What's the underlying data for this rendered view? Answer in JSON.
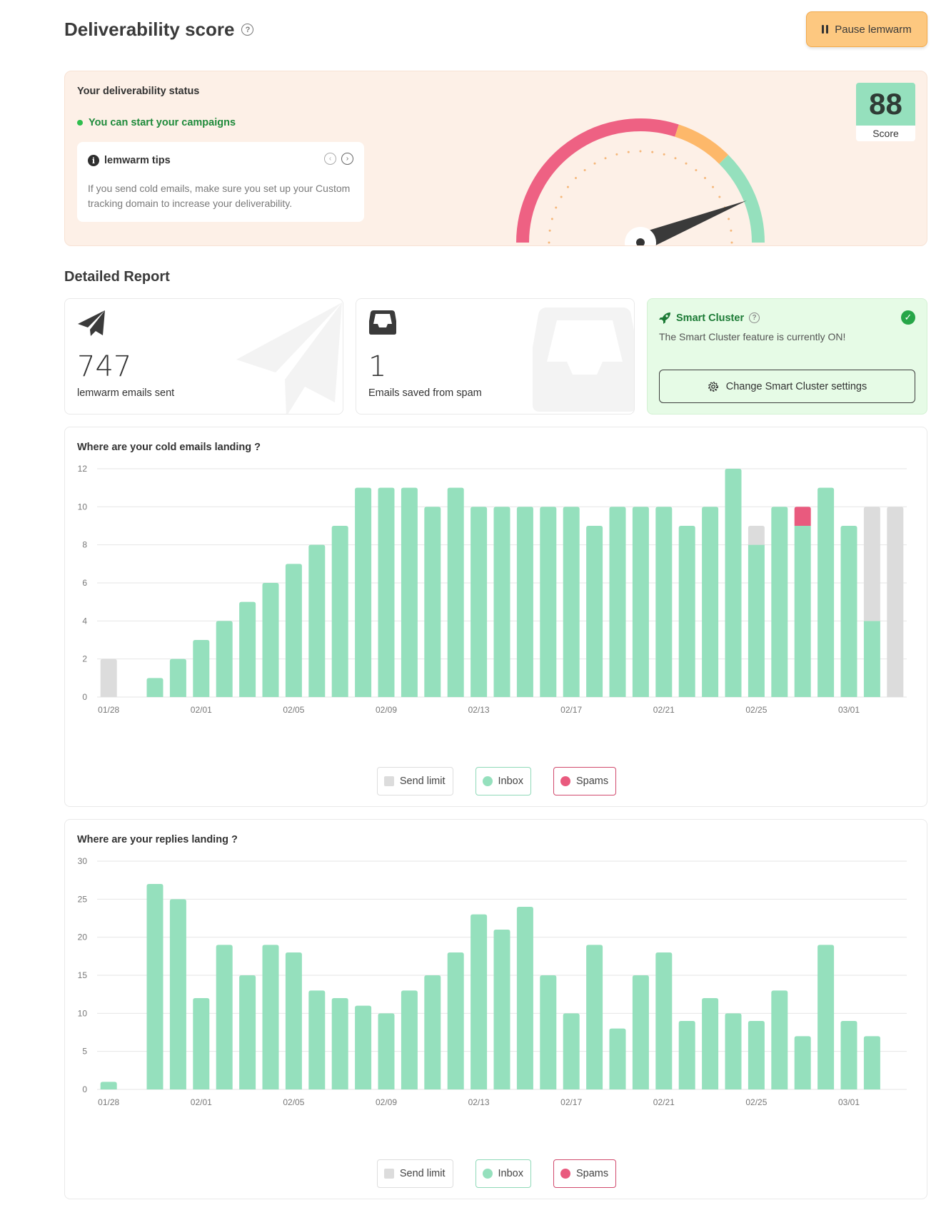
{
  "header": {
    "title": "Deliverability score",
    "help_icon": "question-circle-icon",
    "pause_label": "Pause lemwarm"
  },
  "status": {
    "title": "Your deliverability status",
    "state": "You can start your campaigns",
    "score_value": "88",
    "score_label": "Score",
    "score_number": 88,
    "gauge_colors": {
      "low": "#ee6183",
      "mid": "#fdb86a",
      "high": "#95e0bd"
    }
  },
  "tips": {
    "title": "lemwarm tips",
    "text": "If you send cold emails, make sure you set up your Custom tracking domain to increase your deliverability."
  },
  "report": {
    "title": "Detailed Report",
    "emails_sent_value": "747",
    "emails_sent_label": "lemwarm emails sent",
    "saved_spam_value": "1",
    "saved_spam_label": "Emails saved from spam"
  },
  "smart_cluster": {
    "title": "Smart Cluster",
    "description": "The Smart Cluster feature is currently ON!",
    "button_label": "Change Smart Cluster settings"
  },
  "legend": {
    "send_limit": "Send limit",
    "inbox": "Inbox",
    "spams": "Spams"
  },
  "chart_data": [
    {
      "type": "bar",
      "title": "Where are your cold emails landing ?",
      "stacked": true,
      "ylim": [
        0,
        12
      ],
      "yticks": [
        0,
        2,
        4,
        6,
        8,
        10,
        12
      ],
      "x_tick_labels": [
        "01/28",
        "02/01",
        "02/05",
        "02/09",
        "02/13",
        "02/17",
        "02/21",
        "02/25",
        "03/01"
      ],
      "x_tick_every": 4,
      "series": [
        {
          "name": "Inbox",
          "color": "#95e0bd",
          "values": [
            0,
            0,
            1,
            2,
            3,
            4,
            5,
            6,
            7,
            8,
            9,
            11,
            11,
            11,
            10,
            11,
            10,
            10,
            10,
            10,
            10,
            9,
            10,
            10,
            10,
            9,
            10,
            12,
            8,
            10,
            9,
            11,
            9,
            4,
            0
          ]
        },
        {
          "name": "Spams",
          "color": "#e95a7e",
          "values": [
            0,
            0,
            0,
            0,
            0,
            0,
            0,
            0,
            0,
            0,
            0,
            0,
            0,
            0,
            0,
            0,
            0,
            0,
            0,
            0,
            0,
            0,
            0,
            0,
            0,
            0,
            0,
            0,
            0,
            0,
            1,
            0,
            0,
            0,
            0
          ]
        },
        {
          "name": "Send limit",
          "color": "#dcdcdc",
          "values": [
            2,
            0,
            0,
            0,
            0,
            0,
            0,
            0,
            0,
            0,
            0,
            0,
            0,
            0,
            0,
            0,
            0,
            0,
            0,
            0,
            0,
            0,
            0,
            0,
            0,
            0,
            0,
            0,
            1,
            0,
            0,
            0,
            0,
            6,
            10
          ]
        }
      ]
    },
    {
      "type": "bar",
      "title": "Where are your replies landing ?",
      "stacked": true,
      "ylim": [
        0,
        30
      ],
      "yticks": [
        0,
        5,
        10,
        15,
        20,
        25,
        30
      ],
      "x_tick_labels": [
        "01/28",
        "02/01",
        "02/05",
        "02/09",
        "02/13",
        "02/17",
        "02/21",
        "02/25",
        "03/01"
      ],
      "x_tick_every": 4,
      "series": [
        {
          "name": "Inbox",
          "color": "#95e0bd",
          "values": [
            1,
            0,
            27,
            25,
            12,
            19,
            15,
            19,
            18,
            13,
            12,
            11,
            10,
            13,
            15,
            18,
            23,
            21,
            24,
            15,
            10,
            19,
            8,
            15,
            18,
            9,
            12,
            10,
            9,
            13,
            7,
            19,
            9,
            7,
            0
          ]
        },
        {
          "name": "Spams",
          "color": "#e95a7e",
          "values": [
            0,
            0,
            0,
            0,
            0,
            0,
            0,
            0,
            0,
            0,
            0,
            0,
            0,
            0,
            0,
            0,
            0,
            0,
            0,
            0,
            0,
            0,
            0,
            0,
            0,
            0,
            0,
            0,
            0,
            0,
            0,
            0,
            0,
            0,
            0
          ]
        },
        {
          "name": "Send limit",
          "color": "#dcdcdc",
          "values": [
            0,
            0,
            0,
            0,
            0,
            0,
            0,
            0,
            0,
            0,
            0,
            0,
            0,
            0,
            0,
            0,
            0,
            0,
            0,
            0,
            0,
            0,
            0,
            0,
            0,
            0,
            0,
            0,
            0,
            0,
            0,
            0,
            0,
            0,
            0
          ]
        }
      ]
    }
  ]
}
